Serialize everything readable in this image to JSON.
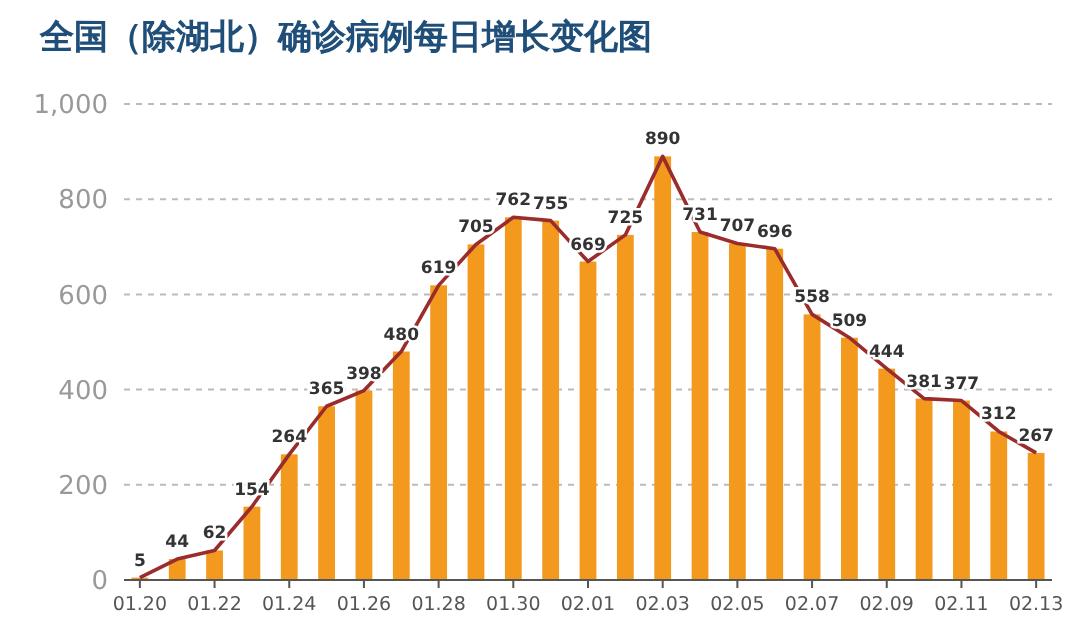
{
  "chart_data": {
    "type": "bar",
    "title": "全国（除湖北）确诊病例每日增长变化图",
    "categories": [
      "01.20",
      null,
      "01.22",
      null,
      "01.24",
      null,
      "01.26",
      null,
      "01.28",
      null,
      "01.30",
      null,
      "02.01",
      null,
      "02.03",
      null,
      "02.05",
      null,
      "02.07",
      null,
      "02.09",
      null,
      "02.11",
      null,
      "02.13"
    ],
    "series": [
      {
        "color": "#f39a1e",
        "values": [
          5,
          44,
          62,
          154,
          264,
          365,
          398,
          480,
          619,
          705,
          762,
          755,
          669,
          725,
          890,
          731,
          707,
          696,
          558,
          509,
          444,
          381,
          377,
          312,
          267
        ],
        "value_labels": [
          "5",
          "44",
          "62",
          "154",
          "264",
          "365",
          "398",
          "480",
          "619",
          "705",
          "762",
          "755",
          "669",
          "725",
          "890",
          "731",
          "707",
          "696",
          "558",
          "509",
          "444",
          "381",
          "377",
          "312",
          "267"
        ]
      },
      {
        "type": "line",
        "color": "#9b2c2c",
        "values": [
          5,
          44,
          62,
          154,
          264,
          365,
          398,
          480,
          619,
          705,
          762,
          755,
          669,
          725,
          890,
          731,
          707,
          696,
          558,
          509,
          444,
          381,
          377,
          312,
          267
        ]
      }
    ],
    "ylim": [
      0,
      1000
    ],
    "yticks": [
      0,
      200,
      400,
      600,
      800,
      {
        "value": 1000,
        "label": "1,000"
      }
    ],
    "grid": "y",
    "marker": "none",
    "line_style": "solid"
  }
}
